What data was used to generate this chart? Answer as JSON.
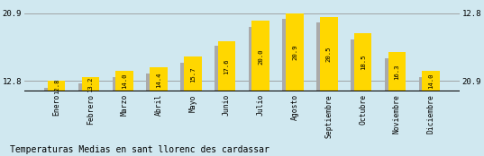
{
  "categories": [
    "Enero",
    "Febrero",
    "Marzo",
    "Abril",
    "Mayo",
    "Junio",
    "Julio",
    "Agosto",
    "Septiembre",
    "Octubre",
    "Noviembre",
    "Diciembre"
  ],
  "values": [
    12.8,
    13.2,
    14.0,
    14.4,
    15.7,
    17.6,
    20.0,
    20.9,
    20.5,
    18.5,
    16.3,
    14.0
  ],
  "gray_values": [
    12.0,
    12.5,
    13.3,
    13.7,
    15.0,
    17.0,
    19.3,
    20.2,
    19.8,
    17.8,
    15.5,
    13.3
  ],
  "bar_color_yellow": "#FFD700",
  "bar_color_gray": "#AAAAAA",
  "background_color": "#D0E8F0",
  "ymin": 11.5,
  "ymax": 22.2,
  "baseline": 11.5,
  "yticks": [
    12.8,
    20.9
  ],
  "title": "Temperaturas Medias en sant llorenc des cardassar",
  "title_fontsize": 7.0,
  "tick_fontsize": 6.5,
  "label_fontsize": 5.8,
  "value_fontsize": 5.2,
  "right_ytick_labels": [
    "20.9",
    "12.8"
  ]
}
